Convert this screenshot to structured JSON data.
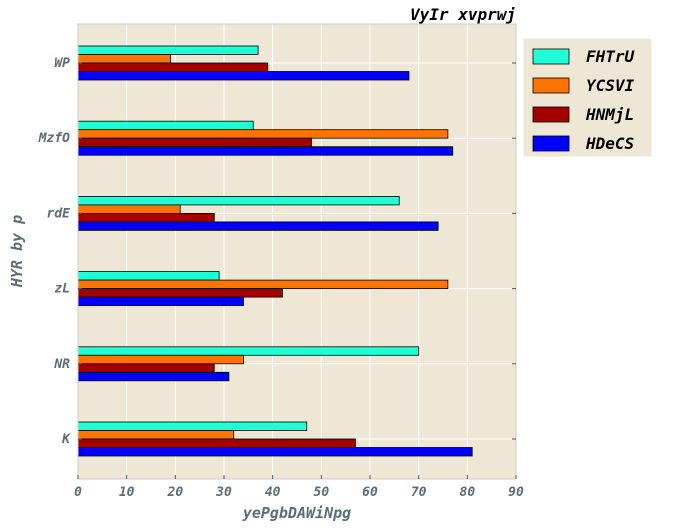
{
  "chart_data": {
    "type": "bar",
    "orientation": "horizontal",
    "title": "VyIr xvprwj",
    "xlabel": "yePgbDAWiNpg",
    "ylabel": "HYR by p",
    "categories": [
      "K",
      "NR",
      "zL",
      "rdE",
      "MzfO",
      "WP"
    ],
    "series": [
      {
        "name": "FHTrU",
        "color": "#1effd6",
        "values": [
          47,
          70,
          29,
          66,
          36,
          37
        ]
      },
      {
        "name": "YCSVI",
        "color": "#ff7300",
        "values": [
          32,
          34,
          76,
          21,
          76,
          19
        ]
      },
      {
        "name": "HNMjL",
        "color": "#a50000",
        "values": [
          57,
          28,
          42,
          28,
          48,
          39
        ]
      },
      {
        "name": "HDeCS",
        "color": "#0000ff",
        "values": [
          81,
          31,
          34,
          74,
          77,
          68
        ]
      }
    ],
    "xlim": [
      0,
      90
    ],
    "xticks": [
      0,
      10,
      20,
      30,
      40,
      50,
      60,
      70,
      80,
      90
    ],
    "grid": true,
    "legend_position": "top-right",
    "background": "#efe7d5"
  }
}
